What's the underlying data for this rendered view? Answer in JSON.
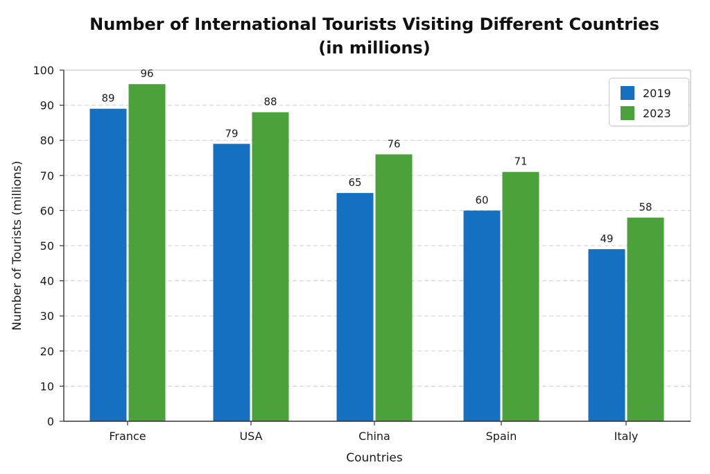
{
  "chart_data": {
    "type": "bar",
    "title": "Number of International Tourists Visiting Different Countries",
    "subtitle": "(in millions)",
    "xlabel": "Countries",
    "ylabel": "Number of Tourists (millions)",
    "categories": [
      "France",
      "USA",
      "China",
      "Spain",
      "Italy"
    ],
    "series": [
      {
        "name": "2019",
        "values": [
          89,
          79,
          65,
          60,
          49
        ],
        "color": "#1570c2"
      },
      {
        "name": "2023",
        "values": [
          96,
          88,
          76,
          71,
          58
        ],
        "color": "#4ba23a"
      }
    ],
    "ylim": [
      0,
      100
    ],
    "yticks": [
      0,
      10,
      20,
      30,
      40,
      50,
      60,
      70,
      80,
      90,
      100
    ],
    "grid": true,
    "legend_position": "top-right",
    "data_labels": true
  }
}
